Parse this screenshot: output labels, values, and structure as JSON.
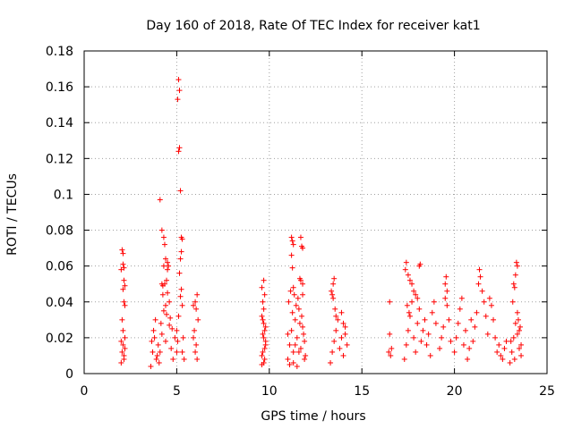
{
  "chart_data": {
    "type": "scatter",
    "title": "Day 160 of 2018, Rate Of TEC Index for receiver kat1",
    "xlabel": "GPS time / hours",
    "ylabel": "ROTI / TECUs",
    "xlim": [
      0,
      25
    ],
    "ylim": [
      0,
      0.18
    ],
    "x_ticks": [
      0,
      5,
      10,
      15,
      20,
      25
    ],
    "x_tick_labels": [
      "0",
      "5",
      "10",
      "15",
      "20",
      "25"
    ],
    "y_ticks": [
      0,
      0.02,
      0.04,
      0.06,
      0.08,
      0.1,
      0.12,
      0.14,
      0.16,
      0.18
    ],
    "y_tick_labels": [
      "0",
      "0.02",
      "0.04",
      "0.06",
      "0.08",
      "0.1",
      "0.12",
      "0.14",
      "0.16",
      "0.18"
    ],
    "grid": true,
    "marker": "plus",
    "color": "#ff0000",
    "series": [
      {
        "name": "kat1",
        "points": [
          [
            2.0,
            0.018
          ],
          [
            2.05,
            0.012
          ],
          [
            2.1,
            0.016
          ],
          [
            2.15,
            0.008
          ],
          [
            2.2,
            0.02
          ],
          [
            2.0,
            0.006
          ],
          [
            2.1,
            0.024
          ],
          [
            2.2,
            0.014
          ],
          [
            2.05,
            0.03
          ],
          [
            2.15,
            0.01
          ],
          [
            2.0,
            0.058
          ],
          [
            2.1,
            0.061
          ],
          [
            2.15,
            0.059
          ],
          [
            2.05,
            0.069
          ],
          [
            2.1,
            0.067
          ],
          [
            2.15,
            0.052
          ],
          [
            2.2,
            0.049
          ],
          [
            2.1,
            0.047
          ],
          [
            2.15,
            0.04
          ],
          [
            2.2,
            0.038
          ],
          [
            3.6,
            0.004
          ],
          [
            3.7,
            0.012
          ],
          [
            3.8,
            0.02
          ],
          [
            3.9,
            0.008
          ],
          [
            4.0,
            0.016
          ],
          [
            3.75,
            0.024
          ],
          [
            3.85,
            0.03
          ],
          [
            3.95,
            0.01
          ],
          [
            3.65,
            0.018
          ],
          [
            4.05,
            0.006
          ],
          [
            4.1,
            0.012
          ],
          [
            4.2,
            0.022
          ],
          [
            4.3,
            0.035
          ],
          [
            4.4,
            0.018
          ],
          [
            4.5,
            0.045
          ],
          [
            4.6,
            0.027
          ],
          [
            4.7,
            0.014
          ],
          [
            4.8,
            0.008
          ],
          [
            4.9,
            0.02
          ],
          [
            5.0,
            0.012
          ],
          [
            4.2,
            0.05
          ],
          [
            4.3,
            0.06
          ],
          [
            4.4,
            0.064
          ],
          [
            4.5,
            0.058
          ],
          [
            4.45,
            0.052
          ],
          [
            4.6,
            0.04
          ],
          [
            4.35,
            0.072
          ],
          [
            4.4,
            0.038
          ],
          [
            4.15,
            0.028
          ],
          [
            4.25,
            0.044
          ],
          [
            4.1,
            0.097
          ],
          [
            4.2,
            0.08
          ],
          [
            4.3,
            0.076
          ],
          [
            4.55,
            0.06
          ],
          [
            4.5,
            0.062
          ],
          [
            4.25,
            0.049
          ],
          [
            4.35,
            0.05
          ],
          [
            4.45,
            0.033
          ],
          [
            4.65,
            0.031
          ],
          [
            4.75,
            0.025
          ],
          [
            5.1,
            0.164
          ],
          [
            5.15,
            0.158
          ],
          [
            5.05,
            0.153
          ],
          [
            5.15,
            0.126
          ],
          [
            5.1,
            0.124
          ],
          [
            5.2,
            0.102
          ],
          [
            5.25,
            0.076
          ],
          [
            5.3,
            0.075
          ],
          [
            5.25,
            0.068
          ],
          [
            5.2,
            0.064
          ],
          [
            5.15,
            0.056
          ],
          [
            5.25,
            0.047
          ],
          [
            5.2,
            0.043
          ],
          [
            5.3,
            0.038
          ],
          [
            5.1,
            0.032
          ],
          [
            5.35,
            0.02
          ],
          [
            5.3,
            0.012
          ],
          [
            5.05,
            0.018
          ],
          [
            5.4,
            0.008
          ],
          [
            5.0,
            0.024
          ],
          [
            5.9,
            0.02
          ],
          [
            6.0,
            0.012
          ],
          [
            6.05,
            0.016
          ],
          [
            6.1,
            0.008
          ],
          [
            5.95,
            0.024
          ],
          [
            6.0,
            0.04
          ],
          [
            6.05,
            0.036
          ],
          [
            6.1,
            0.044
          ],
          [
            5.9,
            0.038
          ],
          [
            6.15,
            0.03
          ],
          [
            9.6,
            0.005
          ],
          [
            9.65,
            0.012
          ],
          [
            9.7,
            0.02
          ],
          [
            9.75,
            0.008
          ],
          [
            9.8,
            0.016
          ],
          [
            9.65,
            0.03
          ],
          [
            9.7,
            0.036
          ],
          [
            9.75,
            0.024
          ],
          [
            9.6,
            0.048
          ],
          [
            9.7,
            0.052
          ],
          [
            9.75,
            0.044
          ],
          [
            9.65,
            0.04
          ],
          [
            9.7,
            0.028
          ],
          [
            9.8,
            0.018
          ],
          [
            9.6,
            0.01
          ],
          [
            9.75,
            0.014
          ],
          [
            9.7,
            0.006
          ],
          [
            9.65,
            0.022
          ],
          [
            9.8,
            0.026
          ],
          [
            9.6,
            0.032
          ],
          [
            11.0,
            0.008
          ],
          [
            11.1,
            0.016
          ],
          [
            11.2,
            0.024
          ],
          [
            11.3,
            0.012
          ],
          [
            11.4,
            0.03
          ],
          [
            11.5,
            0.02
          ],
          [
            11.6,
            0.036
          ],
          [
            11.7,
            0.014
          ],
          [
            11.8,
            0.026
          ],
          [
            11.9,
            0.018
          ],
          [
            11.05,
            0.04
          ],
          [
            11.15,
            0.046
          ],
          [
            11.25,
            0.034
          ],
          [
            11.35,
            0.044
          ],
          [
            11.45,
            0.038
          ],
          [
            11.55,
            0.042
          ],
          [
            11.65,
            0.028
          ],
          [
            11.75,
            0.032
          ],
          [
            11.85,
            0.022
          ],
          [
            11.95,
            0.01
          ],
          [
            11.2,
            0.076
          ],
          [
            11.25,
            0.074
          ],
          [
            11.3,
            0.072
          ],
          [
            11.2,
            0.066
          ],
          [
            11.25,
            0.059
          ],
          [
            11.3,
            0.048
          ],
          [
            11.7,
            0.076
          ],
          [
            11.75,
            0.071
          ],
          [
            11.8,
            0.07
          ],
          [
            11.65,
            0.053
          ],
          [
            11.7,
            0.052
          ],
          [
            11.8,
            0.05
          ],
          [
            11.1,
            0.005
          ],
          [
            11.5,
            0.004
          ],
          [
            11.3,
            0.006
          ],
          [
            11.9,
            0.008
          ],
          [
            11.6,
            0.012
          ],
          [
            11.4,
            0.016
          ],
          [
            11.0,
            0.022
          ],
          [
            11.8,
            0.044
          ],
          [
            13.3,
            0.006
          ],
          [
            13.4,
            0.012
          ],
          [
            13.5,
            0.018
          ],
          [
            13.6,
            0.024
          ],
          [
            13.7,
            0.03
          ],
          [
            13.8,
            0.014
          ],
          [
            13.9,
            0.02
          ],
          [
            14.0,
            0.01
          ],
          [
            14.1,
            0.026
          ],
          [
            14.2,
            0.016
          ],
          [
            13.35,
            0.046
          ],
          [
            13.45,
            0.05
          ],
          [
            13.5,
            0.053
          ],
          [
            13.4,
            0.044
          ],
          [
            13.45,
            0.042
          ],
          [
            13.55,
            0.036
          ],
          [
            13.6,
            0.032
          ],
          [
            13.9,
            0.034
          ],
          [
            14.0,
            0.028
          ],
          [
            14.1,
            0.022
          ],
          [
            16.5,
            0.04
          ],
          [
            16.5,
            0.022
          ],
          [
            16.6,
            0.014
          ],
          [
            16.55,
            0.01
          ],
          [
            16.45,
            0.012
          ],
          [
            17.3,
            0.008
          ],
          [
            17.4,
            0.016
          ],
          [
            17.5,
            0.024
          ],
          [
            17.6,
            0.032
          ],
          [
            17.7,
            0.04
          ],
          [
            17.8,
            0.02
          ],
          [
            17.9,
            0.012
          ],
          [
            18.0,
            0.028
          ],
          [
            18.1,
            0.036
          ],
          [
            18.2,
            0.018
          ],
          [
            17.35,
            0.058
          ],
          [
            17.4,
            0.062
          ],
          [
            17.5,
            0.055
          ],
          [
            17.6,
            0.052
          ],
          [
            17.7,
            0.05
          ],
          [
            17.8,
            0.046
          ],
          [
            17.9,
            0.044
          ],
          [
            18.0,
            0.042
          ],
          [
            17.45,
            0.038
          ],
          [
            17.55,
            0.034
          ],
          [
            18.1,
            0.06
          ],
          [
            18.15,
            0.061
          ],
          [
            18.3,
            0.024
          ],
          [
            18.4,
            0.03
          ],
          [
            18.5,
            0.016
          ],
          [
            18.6,
            0.022
          ],
          [
            18.7,
            0.01
          ],
          [
            18.8,
            0.034
          ],
          [
            18.9,
            0.04
          ],
          [
            19.0,
            0.028
          ],
          [
            19.2,
            0.014
          ],
          [
            19.3,
            0.02
          ],
          [
            19.4,
            0.026
          ],
          [
            19.5,
            0.05
          ],
          [
            19.55,
            0.054
          ],
          [
            19.6,
            0.046
          ],
          [
            19.5,
            0.042
          ],
          [
            19.6,
            0.038
          ],
          [
            19.7,
            0.03
          ],
          [
            19.8,
            0.018
          ],
          [
            20.0,
            0.012
          ],
          [
            20.1,
            0.02
          ],
          [
            20.2,
            0.028
          ],
          [
            20.3,
            0.036
          ],
          [
            20.4,
            0.042
          ],
          [
            20.5,
            0.016
          ],
          [
            20.6,
            0.024
          ],
          [
            20.7,
            0.008
          ],
          [
            20.8,
            0.014
          ],
          [
            20.9,
            0.03
          ],
          [
            21.0,
            0.018
          ],
          [
            21.1,
            0.026
          ],
          [
            21.2,
            0.034
          ],
          [
            21.3,
            0.05
          ],
          [
            21.35,
            0.058
          ],
          [
            21.4,
            0.054
          ],
          [
            21.5,
            0.046
          ],
          [
            21.6,
            0.04
          ],
          [
            21.7,
            0.032
          ],
          [
            21.8,
            0.022
          ],
          [
            21.9,
            0.042
          ],
          [
            22.0,
            0.038
          ],
          [
            22.1,
            0.03
          ],
          [
            22.2,
            0.02
          ],
          [
            22.3,
            0.012
          ],
          [
            22.4,
            0.016
          ],
          [
            22.5,
            0.01
          ],
          [
            22.6,
            0.008
          ],
          [
            22.7,
            0.014
          ],
          [
            22.8,
            0.018
          ],
          [
            23.0,
            0.006
          ],
          [
            23.1,
            0.012
          ],
          [
            23.2,
            0.02
          ],
          [
            23.3,
            0.028
          ],
          [
            23.4,
            0.034
          ],
          [
            23.5,
            0.024
          ],
          [
            23.6,
            0.016
          ],
          [
            23.15,
            0.04
          ],
          [
            23.25,
            0.048
          ],
          [
            23.3,
            0.055
          ],
          [
            23.35,
            0.062
          ],
          [
            23.4,
            0.06
          ],
          [
            23.2,
            0.05
          ],
          [
            23.45,
            0.03
          ],
          [
            23.55,
            0.026
          ],
          [
            23.6,
            0.01
          ],
          [
            23.05,
            0.018
          ],
          [
            23.5,
            0.014
          ],
          [
            23.25,
            0.008
          ],
          [
            23.4,
            0.022
          ]
        ]
      }
    ]
  }
}
